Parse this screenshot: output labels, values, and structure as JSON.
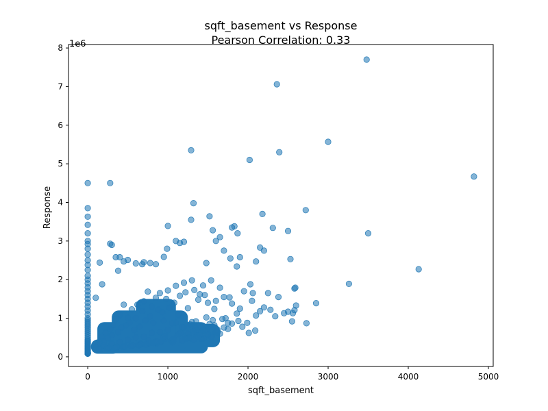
{
  "chart_data": {
    "type": "scatter",
    "title": "sqft_basement vs Response",
    "subtitle": "Pearson Correlation: 0.33",
    "xlabel": "sqft_basement",
    "ylabel": "Response",
    "y_offset_label": "1e6",
    "xlim": [
      -240,
      5060
    ],
    "ylim": [
      -250000,
      8090000
    ],
    "x_ticks": [
      0,
      1000,
      2000,
      3000,
      4000,
      5000
    ],
    "x_tick_labels": [
      "0",
      "1000",
      "2000",
      "3000",
      "4000",
      "5000"
    ],
    "y_ticks": [
      0,
      1000000,
      2000000,
      3000000,
      4000000,
      5000000,
      6000000,
      7000000,
      8000000
    ],
    "y_tick_labels": [
      "0",
      "1",
      "2",
      "3",
      "4",
      "5",
      "6",
      "7",
      "8"
    ],
    "grid": false,
    "legend": "none",
    "marker_color": "#1f77b4",
    "marker_alpha": 0.55,
    "series": [
      {
        "x": [
          0,
          0,
          0,
          0,
          0,
          0,
          0,
          0,
          0,
          0,
          0,
          0,
          0,
          0,
          0,
          0,
          0,
          0,
          0,
          0,
          0,
          0,
          0,
          0,
          0,
          0,
          0,
          0,
          0,
          0,
          0,
          0,
          0,
          0,
          0,
          0,
          0,
          0,
          0,
          0,
          0,
          0,
          0,
          0,
          0,
          0,
          0,
          0,
          0,
          0,
          0,
          0,
          0,
          0,
          0,
          0,
          0,
          0,
          0,
          0,
          280,
          1290,
          2020,
          2360,
          3480,
          2390,
          3000,
          4820,
          4130,
          3500,
          3260,
          2850,
          2720,
          2600,
          2580,
          2530,
          2730,
          2500,
          2310,
          2200,
          2180,
          2150,
          2100,
          2060,
          2030,
          1900,
          1870,
          1860,
          1830,
          1800,
          1780,
          1700,
          1650,
          1600,
          1560,
          1520,
          1480,
          1320,
          1290,
          1200,
          1150,
          1100,
          1000,
          990,
          950,
          850,
          780,
          700,
          680,
          600,
          500,
          450,
          400,
          380,
          350,
          300,
          280,
          180,
          150,
          100,
          2580,
          2560,
          2590,
          2550,
          2500,
          2450,
          2380,
          2340,
          2280,
          2250,
          2200,
          2150,
          2100,
          2090,
          2050,
          2010,
          1990,
          1950,
          1930,
          1900,
          1880,
          1860,
          1800,
          1770,
          1750,
          1700,
          1680,
          1650,
          1620,
          1600,
          1580,
          1560,
          1540,
          1520,
          1500,
          1480,
          1460,
          1440,
          1420,
          1400,
          1380,
          1350,
          1330,
          1300,
          1280,
          1250,
          1220,
          1200,
          1180,
          1150,
          1130,
          1100,
          1080,
          1050,
          1020,
          1000,
          980,
          950,
          930,
          900,
          880,
          850,
          820,
          800,
          780,
          750,
          720,
          700,
          680,
          650,
          620,
          600,
          580,
          550,
          520,
          500,
          480,
          450,
          420,
          400,
          380,
          350,
          320,
          300,
          280,
          250,
          220,
          200,
          180,
          150,
          120,
          100,
          1400,
          1350,
          1300,
          1250,
          1200,
          1100,
          1000,
          900,
          800,
          700,
          600,
          500,
          400,
          300,
          200,
          1500,
          1450,
          1380,
          1320,
          1280,
          1180,
          1120,
          1060,
          960,
          860,
          760,
          660,
          560,
          460,
          360,
          260,
          160,
          1600,
          1550,
          1480,
          1420,
          1360,
          1240,
          1140,
          1040,
          940,
          840,
          740,
          640,
          540,
          440,
          340,
          240,
          140,
          1700,
          1650,
          1580,
          1540,
          1460,
          1400,
          1340,
          1260,
          1160,
          1060,
          960,
          860,
          760,
          660,
          560,
          460,
          360,
          260,
          1800,
          1750,
          1720,
          1620,
          1560,
          1500,
          1440,
          1380,
          1320,
          1220,
          1080,
          920,
          820,
          720
        ],
        "y": [
          4500000,
          3850000,
          3630000,
          3420000,
          3200000,
          3000000,
          2920000,
          2800000,
          2650000,
          2500000,
          2380000,
          2250000,
          2100000,
          2000000,
          1900000,
          1800000,
          1700000,
          1600000,
          1500000,
          1400000,
          1300000,
          1200000,
          1100000,
          1000000,
          950000,
          900000,
          850000,
          800000,
          750000,
          700000,
          650000,
          600000,
          550000,
          500000,
          450000,
          420000,
          400000,
          370000,
          350000,
          330000,
          300000,
          280000,
          260000,
          240000,
          220000,
          200000,
          180000,
          160000,
          140000,
          120000,
          110000,
          100000,
          90000,
          85000,
          80000,
          82000,
          86000,
          95000,
          105000,
          115000,
          4500000,
          5350000,
          5100000,
          7060000,
          7700000,
          5300000,
          5570000,
          4670000,
          2270000,
          3200000,
          1890000,
          1390000,
          3800000,
          1330000,
          1210000,
          2530000,
          870000,
          3260000,
          3340000,
          2750000,
          3700000,
          2830000,
          2470000,
          1650000,
          1880000,
          2580000,
          3200000,
          2340000,
          3380000,
          3350000,
          2550000,
          2750000,
          3100000,
          3000000,
          3280000,
          3640000,
          2430000,
          3980000,
          3550000,
          2980000,
          2950000,
          3000000,
          3390000,
          2800000,
          2590000,
          2400000,
          2430000,
          2450000,
          2400000,
          2420000,
          2510000,
          2470000,
          2580000,
          2230000,
          2580000,
          2900000,
          2930000,
          1880000,
          2440000,
          1530000,
          1770000,
          1130000,
          1790000,
          920000,
          1170000,
          1130000,
          1550000,
          1050000,
          1220000,
          1650000,
          1280000,
          1180000,
          1070000,
          680000,
          1450000,
          620000,
          880000,
          1700000,
          780000,
          1250000,
          930000,
          1120000,
          1380000,
          1540000,
          880000,
          1550000,
          980000,
          1790000,
          700000,
          1450000,
          1240000,
          950000,
          1980000,
          850000,
          1400000,
          1020000,
          1600000,
          1850000,
          760000,
          1620000,
          1480000,
          920000,
          1730000,
          1980000,
          840000,
          1260000,
          1670000,
          1920000,
          770000,
          1580000,
          1090000,
          1840000,
          1400000,
          870000,
          1270000,
          1720000,
          1500000,
          940000,
          1160000,
          1650000,
          1220000,
          1530000,
          880000,
          1300000,
          1050000,
          1690000,
          940000,
          1440000,
          1180000,
          780000,
          1350000,
          1000000,
          700000,
          1230000,
          890000,
          1010000,
          820000,
          1350000,
          760000,
          1090000,
          640000,
          980000,
          820000,
          560000,
          720000,
          480000,
          620000,
          400000,
          520000,
          360000,
          300000,
          240000,
          800000,
          680000,
          900000,
          600000,
          760000,
          880000,
          700000,
          640000,
          620000,
          520000,
          500000,
          440000,
          380000,
          340000,
          300000,
          560000,
          480000,
          620000,
          440000,
          500000,
          420000,
          560000,
          380000,
          460000,
          360000,
          420000,
          340000,
          300000,
          260000,
          240000,
          220000,
          200000,
          640000,
          520000,
          700000,
          460000,
          560000,
          480000,
          600000,
          420000,
          500000,
          380000,
          320000,
          300000,
          280000,
          260000,
          240000,
          220000,
          200000,
          760000,
          600000,
          820000,
          520000,
          680000,
          560000,
          740000,
          500000,
          620000,
          440000,
          540000,
          400000,
          360000,
          320000,
          300000,
          280000,
          260000,
          240000,
          860000,
          720000,
          1000000,
          640000,
          780000,
          580000,
          700000,
          520000,
          660000,
          480000,
          440000,
          400000,
          360000,
          320000
        ]
      }
    ]
  }
}
